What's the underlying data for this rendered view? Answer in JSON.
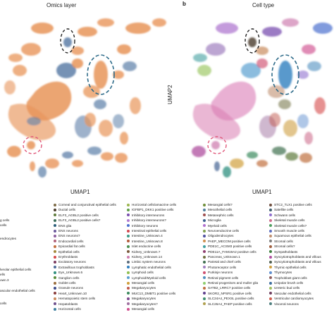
{
  "panel_a": {
    "title": "Omics layer",
    "xlabel": "UMAP1"
  },
  "panel_b": {
    "letter": "b",
    "title": "Cell type",
    "xlabel": "UMAP1",
    "ylabel": "UMAP2"
  },
  "colors": {
    "rna": "#e8955a",
    "atac": "#5d7fa8",
    "highlight_dark": "#222222",
    "highlight_blue": "#2e6b89",
    "highlight_pink": "#e0587a"
  },
  "legend_partial": [
    {
      "text": "g cells",
      "col": 0
    },
    {
      "text": "cells",
      "col": 0
    },
    {
      "text": "endrocytes",
      "col": 0
    },
    {
      "text": "lveolar epithelial cells",
      "col": 0
    },
    {
      "text": "ells",
      "col": 0
    },
    {
      "text": "own.3",
      "col": 0
    },
    {
      "text": "ascular endothelial cells",
      "col": 0
    },
    {
      "text": "cells",
      "col": 0
    }
  ],
  "legend": [
    [
      {
        "label": "Corneal and conjunctival epithelial cells",
        "color": "#7d6b48"
      },
      {
        "label": "Ductal cells",
        "color": "#4a3c2c"
      },
      {
        "label": "ELF3_AGBL2 positive cells",
        "color": "#5e7b3c"
      },
      {
        "label": "ELF3_AGBL2 positive cells?",
        "color": "#3d6f5a"
      },
      {
        "label": "ENS glia",
        "color": "#2b5e7a"
      },
      {
        "label": "ENS neurons",
        "color": "#6a5a9c"
      },
      {
        "label": "ENS neurons?",
        "color": "#8c5f9e"
      },
      {
        "label": "Endocardial cells",
        "color": "#b0627a"
      },
      {
        "label": "Epicardial fat cells",
        "color": "#c2703e"
      },
      {
        "label": "Epithelial cells",
        "color": "#a48a3d"
      },
      {
        "label": "Erythroblasts",
        "color": "#d6494a"
      },
      {
        "label": "Excitatory neurons",
        "color": "#7c3a5e"
      },
      {
        "label": "Extravillous trophoblasts",
        "color": "#4f6d9a"
      },
      {
        "label": "Eye_Unknown.6",
        "color": "#2f8f7e"
      },
      {
        "label": "Ganglion cells",
        "color": "#5b8d3a"
      },
      {
        "label": "Goblet cells",
        "color": "#9c6f3e"
      },
      {
        "label": "Granule neurons",
        "color": "#3c4c8a"
      },
      {
        "label": "Heart_Unknown.10",
        "color": "#8a3c3c"
      },
      {
        "label": "Hematopoietic stem cells",
        "color": "#c98b5e"
      },
      {
        "label": "Hepatoblasts",
        "color": "#6d4f8c"
      },
      {
        "label": "Horizontal cells",
        "color": "#3f7f9f"
      }
    ],
    [
      {
        "label": "Horizontal cells/amacrine cells",
        "color": "#9bb64e"
      },
      {
        "label": "IGFBP1_DKK1 positive cells",
        "color": "#5f9f4a"
      },
      {
        "label": "Inhibitory interneurons",
        "color": "#7a4fb0"
      },
      {
        "label": "Inhibitory interneurons?",
        "color": "#b07ad0"
      },
      {
        "label": "Inhibitory neurons",
        "color": "#4c6fcf"
      },
      {
        "label": "Intestinal epithelial cells",
        "color": "#d0474f"
      },
      {
        "label": "Intestine_Unknown.4",
        "color": "#3a9a86"
      },
      {
        "label": "Intestine_Unknown.8",
        "color": "#b35a3a"
      },
      {
        "label": "Islet endocrine cells",
        "color": "#4a8f4f"
      },
      {
        "label": "Kidney_Unknown.?",
        "color": "#7b5a3c"
      },
      {
        "label": "Kidney_Unknown.14",
        "color": "#cf7fb0"
      },
      {
        "label": "Limbic system neurons",
        "color": "#5a6a7a"
      },
      {
        "label": "Lymphatic endothelial cells",
        "color": "#2f7fbf"
      },
      {
        "label": "Lymphoid cells",
        "color": "#8fbf4f"
      },
      {
        "label": "Lymphoid/Myeloid cells",
        "color": "#5a9fd0"
      },
      {
        "label": "Mesangial cells",
        "color": "#d09f3a"
      },
      {
        "label": "Megakaryocytes",
        "color": "#c0584a"
      },
      {
        "label": "MUC13_DMBT1 positive cells",
        "color": "#3b8a5e"
      },
      {
        "label": "Megakaryocytes",
        "color": "#7f4a8f"
      },
      {
        "label": "Megakaryocytes?",
        "color": "#9f6f9f"
      },
      {
        "label": "Mesangial cells",
        "color": "#d04f8f"
      }
    ],
    [
      {
        "label": "Mesangial cells?",
        "color": "#6f8f3a"
      },
      {
        "label": "Mesothelial cells",
        "color": "#4f7f9f"
      },
      {
        "label": "Metanephric cells",
        "color": "#9f4f4f"
      },
      {
        "label": "Microglia",
        "color": "#3a5f8f"
      },
      {
        "label": "Myeloid cells",
        "color": "#b06fcf"
      },
      {
        "label": "Neuroendocrine cells",
        "color": "#7f9f4f"
      },
      {
        "label": "Oligodendrocytes",
        "color": "#4f4f9f"
      },
      {
        "label": "PAEP_MECOM positive cells",
        "color": "#cf8f4f"
      },
      {
        "label": "PDE1C_ACSM3 positive cells",
        "color": "#3f9f9f"
      },
      {
        "label": "PDE11A_FAM19A2 positive cells",
        "color": "#8f3f6f"
      },
      {
        "label": "Pancreas_Unknown.1",
        "color": "#6f6f3f"
      },
      {
        "label": "Parietal and chief cells",
        "color": "#3f6f4f"
      },
      {
        "label": "Photoreceptor cells",
        "color": "#9f7fbf"
      },
      {
        "label": "Purkinje neurons",
        "color": "#cf4f6f"
      },
      {
        "label": "Retinal pigment cells",
        "color": "#4f8fbf"
      },
      {
        "label": "Retinal progenitors and muller glia",
        "color": "#8fcf6f"
      },
      {
        "label": "SATB2_LRRC7 positive cells",
        "color": "#bf6f3f"
      },
      {
        "label": "SKOR2_NPSR1 positive cells",
        "color": "#5f3f8f"
      },
      {
        "label": "SLC24A4_PEXSL positive cells",
        "color": "#3f8f6f"
      },
      {
        "label": "SLC26A4_PAEP positive cells",
        "color": "#af9f4f"
      }
    ],
    [
      {
        "label": "STC2_TLX1 positive cells",
        "color": "#6f4f3f"
      },
      {
        "label": "Satellite cells",
        "color": "#3f5f6f"
      },
      {
        "label": "Schwann cells",
        "color": "#8f6fcf"
      },
      {
        "label": "Skeletal muscle cells",
        "color": "#cf6f8f"
      },
      {
        "label": "Skeletal muscle cells?",
        "color": "#4f9f5f"
      },
      {
        "label": "Smooth muscle cells",
        "color": "#5f6fbf"
      },
      {
        "label": "Squamous epithelial cells",
        "color": "#bf8f6f"
      },
      {
        "label": "Stromal cells",
        "color": "#7f7f7f"
      },
      {
        "label": "Stromal cells?",
        "color": "#9f5f3f"
      },
      {
        "label": "Sympathoblasts",
        "color": "#3f7f3f"
      },
      {
        "label": "Syncytiotrophoblasts and villous",
        "color": "#af4f9f"
      },
      {
        "label": "Syncytiotrophoblasts and villous",
        "color": "#4f5f4f"
      },
      {
        "label": "Thymic epithelial cells",
        "color": "#cf9f3f"
      },
      {
        "label": "Thymocytes",
        "color": "#5f8fcf"
      },
      {
        "label": "Trophoblast giant cells",
        "color": "#8f5f5f"
      },
      {
        "label": "Unipolar brush cells",
        "color": "#3f6f9f"
      },
      {
        "label": "Ureteric bud cells",
        "color": "#9fbf5f"
      },
      {
        "label": "Vascular endothelial cells",
        "color": "#6f3f5f"
      },
      {
        "label": "Ventricular cardiomyocytes",
        "color": "#cf5f4f"
      },
      {
        "label": "Visceral neurons",
        "color": "#4f7f7f"
      }
    ]
  ]
}
